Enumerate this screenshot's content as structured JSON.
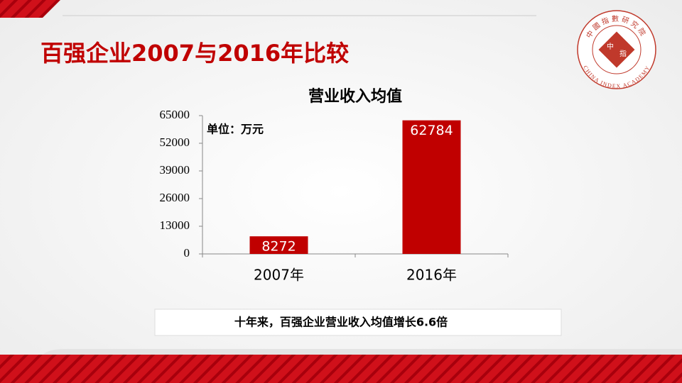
{
  "title": "百强企业2007与2016年比较",
  "chart_data": {
    "type": "bar",
    "title": "营业收入均值",
    "unit_label": "单位：万元",
    "categories": [
      "2007年",
      "2016年"
    ],
    "values": [
      8272,
      62784
    ],
    "color": "#c00000",
    "ylim": [
      0,
      65000
    ],
    "yticks": [
      0,
      13000,
      26000,
      39000,
      52000,
      65000
    ]
  },
  "note": "十年来，百强企业营业收入均值增长6.6倍",
  "logo": {
    "ring_top": "中國指數研究院",
    "ring_bottom": "CHINA INDEX ACADEMY",
    "center": [
      "中",
      "指"
    ]
  }
}
